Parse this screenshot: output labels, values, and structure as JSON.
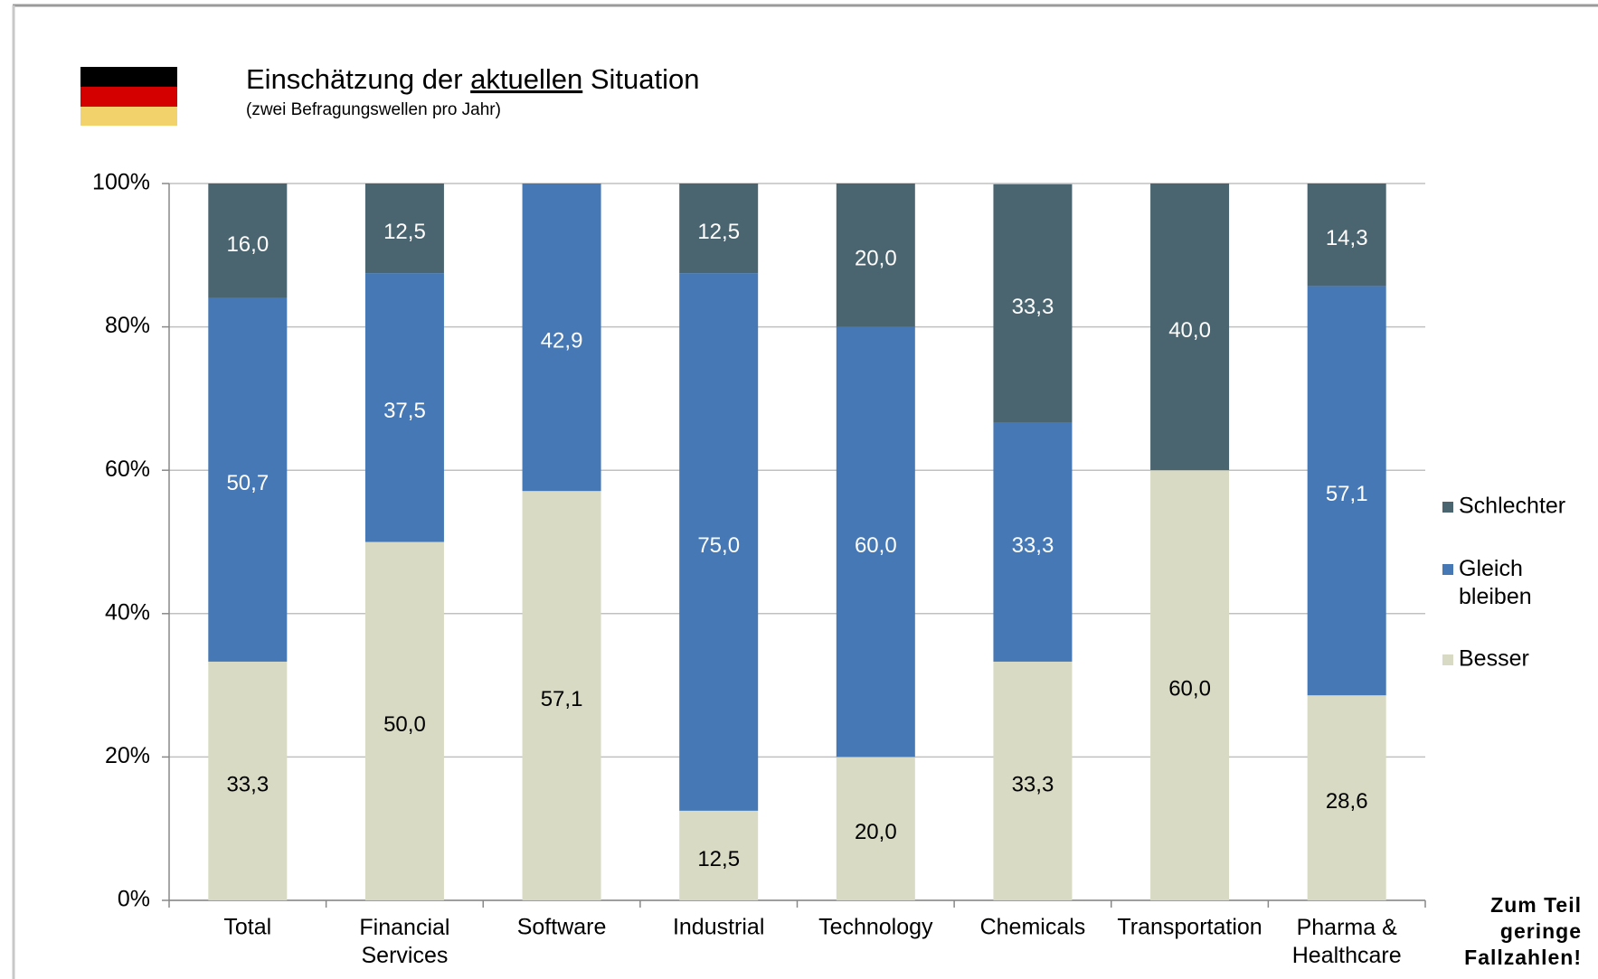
{
  "chart_data": {
    "type": "stacked_bar",
    "title": "Einschätzung der aktuellen Situation",
    "title_underline": "aktuellen",
    "subtitle": "(zwei Befragungswellen pro Jahr)",
    "annotation": "Zum Teil\ngeringe\nFallzahlen!",
    "categories": [
      "Total",
      "Financial\nServices",
      "Software",
      "Industrial",
      "Technology",
      "Chemicals",
      "Transportation",
      "Pharma &\nHealthcare"
    ],
    "series": [
      {
        "name": "Besser",
        "color": "#d8dac3",
        "label_color": "#000000",
        "values": [
          33.3,
          50.0,
          57.1,
          12.5,
          20.0,
          33.3,
          60.0,
          28.6
        ],
        "value_labels": [
          "33,3",
          "50,0",
          "57,1",
          "12,5",
          "20,0",
          "33,3",
          "60,0",
          "28,6"
        ]
      },
      {
        "name": "Gleich\nbleiben",
        "color": "#4578b4",
        "label_color": "#ffffff",
        "values": [
          50.7,
          37.5,
          42.9,
          75.0,
          60.0,
          33.3,
          null,
          57.1
        ],
        "value_labels": [
          "50,7",
          "37,5",
          "42,9",
          "75,0",
          "60,0",
          "33,3",
          null,
          "57,1"
        ]
      },
      {
        "name": "Schlechter",
        "color": "#4a6570",
        "label_color": "#ffffff",
        "values": [
          16.0,
          12.5,
          null,
          12.5,
          20.0,
          33.3,
          40.0,
          14.3
        ],
        "value_labels": [
          "16,0",
          "12,5",
          null,
          "12,5",
          "20,0",
          "33,3",
          "40,0",
          "14,3"
        ]
      }
    ],
    "ylim": [
      0,
      100
    ],
    "yticks": [
      {
        "value": 0,
        "label": "0%"
      },
      {
        "value": 20,
        "label": "20%"
      },
      {
        "value": 40,
        "label": "40%"
      },
      {
        "value": 60,
        "label": "60%"
      },
      {
        "value": 80,
        "label": "80%"
      },
      {
        "value": 100,
        "label": "100%"
      }
    ],
    "grid": true,
    "legend": "right"
  }
}
